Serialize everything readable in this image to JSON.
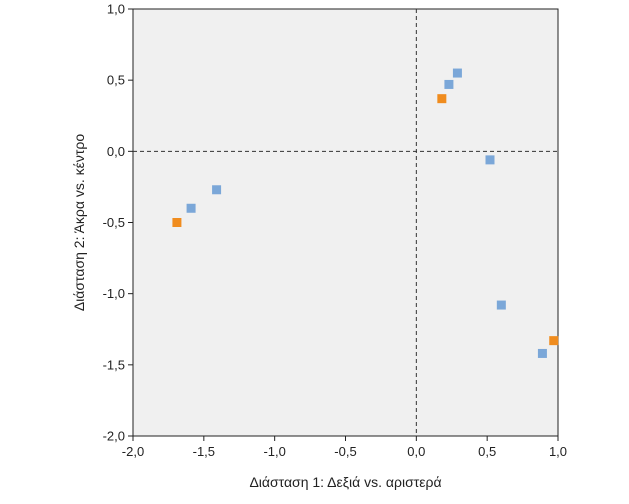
{
  "chart_data": {
    "type": "scatter",
    "title": "",
    "xlabel": "Διάσταση 1: Δεξιά vs. αριστερά",
    "ylabel": "Διάσταση 2: Άκρα vs. κέντρο",
    "xlim": [
      -2.0,
      1.0
    ],
    "ylim": [
      -2.0,
      1.0
    ],
    "x_ticks": [
      -2.0,
      -1.5,
      -1.0,
      -0.5,
      0.0,
      0.5,
      1.0
    ],
    "y_ticks": [
      -2.0,
      -1.5,
      -1.0,
      -0.5,
      0.0,
      0.5,
      1.0
    ],
    "x_tick_labels": [
      "-2,0",
      "-1,5",
      "-1,0",
      "-0,5",
      "0,0",
      "0,5",
      "1,0"
    ],
    "y_tick_labels": [
      "-2,0",
      "-1,5",
      "-1,0",
      "-0,5",
      "0,0",
      "0,5",
      "1,0"
    ],
    "grid": false,
    "reference_lines": {
      "x": 0.0,
      "y": 0.0,
      "style": "dashed"
    },
    "plot_background": "#f0f0f0",
    "series": [
      {
        "color": "#7ba7d8",
        "marker": "square",
        "points": [
          {
            "x": -1.59,
            "y": -0.4
          },
          {
            "x": -1.41,
            "y": -0.27
          },
          {
            "x": 0.23,
            "y": 0.47
          },
          {
            "x": 0.29,
            "y": 0.55
          },
          {
            "x": 0.52,
            "y": -0.06
          },
          {
            "x": 0.6,
            "y": -1.08
          },
          {
            "x": 0.89,
            "y": -1.42
          }
        ]
      },
      {
        "color": "#f08c1e",
        "marker": "square",
        "points": [
          {
            "x": -1.69,
            "y": -0.5
          },
          {
            "x": 0.18,
            "y": 0.37
          },
          {
            "x": 0.97,
            "y": -1.33
          }
        ]
      }
    ]
  }
}
